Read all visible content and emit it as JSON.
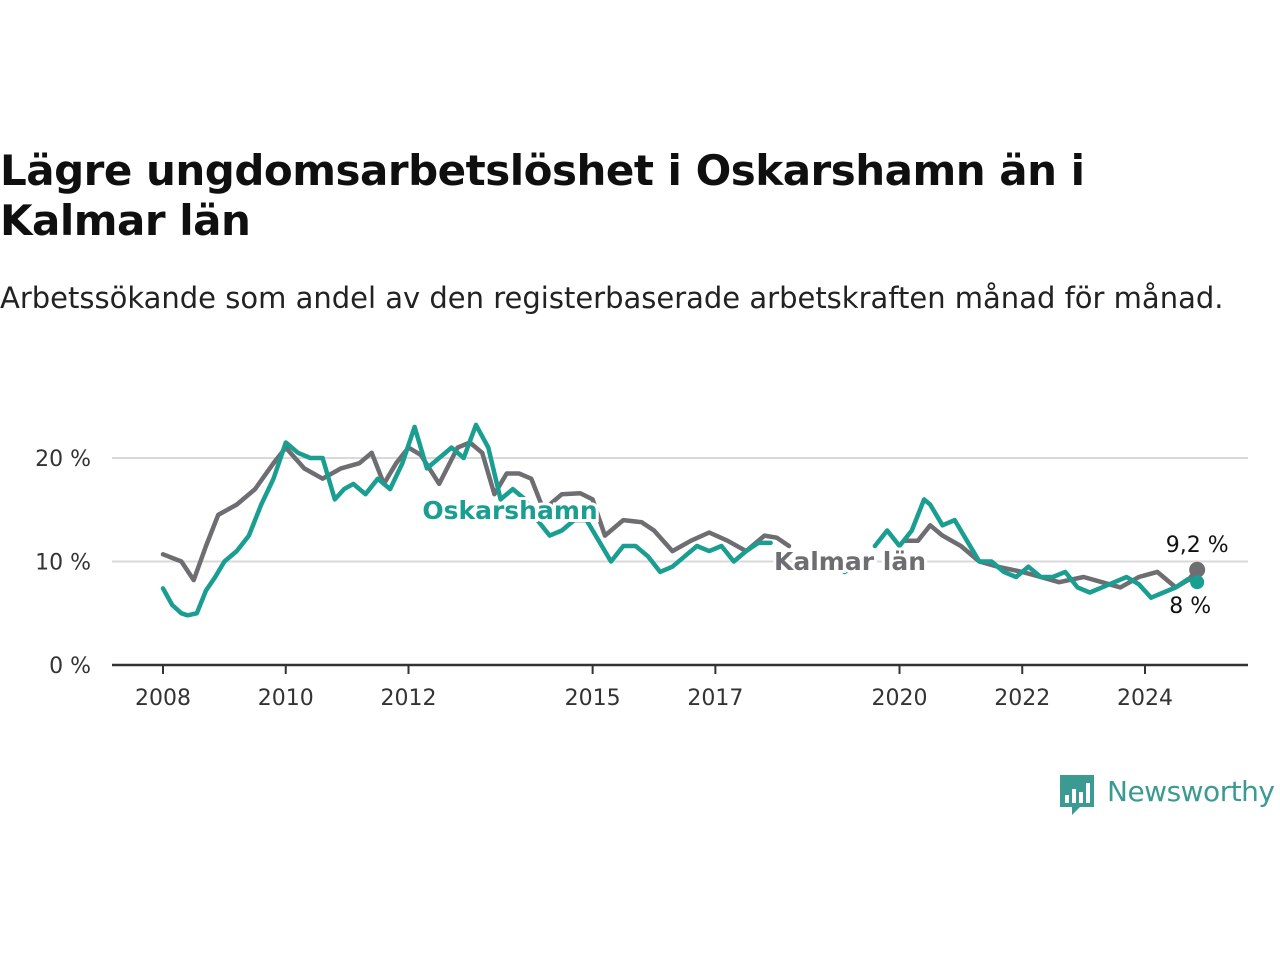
{
  "title": "Lägre ungdomsarbetslöshet i Oskarshamn än i Kalmar län",
  "subtitle": "Arbetssökande som andel av den registerbaserade arbetskraften månad för månad.",
  "brand": {
    "name": "Newsworthy",
    "color": "#3b9a92"
  },
  "chart_data": {
    "type": "line",
    "x_unit": "year",
    "y_unit": "%",
    "ylim": [
      0,
      25
    ],
    "yticks": [
      {
        "value": 0,
        "label": "0 %"
      },
      {
        "value": 10,
        "label": "10 %"
      },
      {
        "value": 20,
        "label": "20 %"
      }
    ],
    "xticks": [
      {
        "value": 2008,
        "label": "2008"
      },
      {
        "value": 2010,
        "label": "2010"
      },
      {
        "value": 2012,
        "label": "2012"
      },
      {
        "value": 2015,
        "label": "2015"
      },
      {
        "value": 2017,
        "label": "2017"
      },
      {
        "value": 2020,
        "label": "2020"
      },
      {
        "value": 2022,
        "label": "2022"
      },
      {
        "value": 2024,
        "label": "2024"
      }
    ],
    "grid": true,
    "series": [
      {
        "name": "Kalmar län",
        "color": "#6e6d72",
        "end_label": "9,2 %",
        "segments": [
          {
            "x": [
              2008.0,
              2008.3,
              2008.5,
              2008.7,
              2008.9,
              2009.2,
              2009.5,
              2009.8,
              2010.0,
              2010.3,
              2010.6,
              2010.9,
              2011.2,
              2011.4,
              2011.6,
              2011.8,
              2012.0,
              2012.2,
              2012.5,
              2012.8,
              2013.0,
              2013.2,
              2013.4,
              2013.6,
              2013.8,
              2014.0,
              2014.2,
              2014.5,
              2014.8,
              2015.0,
              2015.2,
              2015.5,
              2015.8,
              2016.0,
              2016.3,
              2016.6,
              2016.9,
              2017.2,
              2017.5,
              2017.8,
              2018.0,
              2018.2
            ],
            "y": [
              10.7,
              10.0,
              8.2,
              11.5,
              14.5,
              15.5,
              17.0,
              19.5,
              21.0,
              19.0,
              18.0,
              19.0,
              19.5,
              20.5,
              17.5,
              19.5,
              21.0,
              20.3,
              17.5,
              21.0,
              21.5,
              20.5,
              16.5,
              18.5,
              18.5,
              18.0,
              15.0,
              16.5,
              16.6,
              16.0,
              12.5,
              14.0,
              13.8,
              13.0,
              11.0,
              12.0,
              12.8,
              12.0,
              11.0,
              12.5,
              12.3,
              11.5
            ]
          },
          {
            "x": [
              2020.1,
              2020.3,
              2020.5,
              2020.7,
              2021.0,
              2021.3,
              2021.6,
              2022.0,
              2022.3,
              2022.6,
              2023.0,
              2023.3,
              2023.6,
              2023.9,
              2024.2,
              2024.5,
              2024.7,
              2024.85
            ],
            "y": [
              12.0,
              12.0,
              13.5,
              12.5,
              11.5,
              10.0,
              9.5,
              9.0,
              8.5,
              8.0,
              8.5,
              8.0,
              7.5,
              8.5,
              9.0,
              7.5,
              8.2,
              9.2
            ]
          }
        ]
      },
      {
        "name": "Oskarshamn",
        "color": "#1a9e91",
        "end_label": "8 %",
        "segments": [
          {
            "x": [
              2008.0,
              2008.15,
              2008.3,
              2008.4,
              2008.55,
              2008.7,
              2008.85,
              2009.0,
              2009.2,
              2009.4,
              2009.6,
              2009.8,
              2010.0,
              2010.2,
              2010.4,
              2010.6,
              2010.8,
              2010.95,
              2011.1,
              2011.3,
              2011.5,
              2011.7,
              2011.9,
              2012.1,
              2012.3,
              2012.5,
              2012.7,
              2012.9,
              2013.1,
              2013.3,
              2013.5,
              2013.7,
              2013.9,
              2014.1,
              2014.3,
              2014.5,
              2014.7,
              2014.9,
              2015.1,
              2015.3,
              2015.5,
              2015.7,
              2015.9,
              2016.1,
              2016.3,
              2016.5,
              2016.7,
              2016.9,
              2017.1,
              2017.3,
              2017.5,
              2017.7,
              2017.9
            ],
            "y": [
              7.4,
              5.8,
              5.0,
              4.8,
              5.0,
              7.2,
              8.5,
              10.0,
              11.0,
              12.5,
              15.5,
              18.0,
              21.5,
              20.5,
              20.0,
              20.0,
              16.0,
              17.0,
              17.5,
              16.5,
              18.0,
              17.0,
              19.5,
              23.0,
              19.0,
              20.0,
              21.0,
              20.0,
              23.2,
              21.0,
              16.0,
              17.0,
              16.0,
              14.0,
              12.5,
              13.0,
              14.0,
              14.0,
              12.0,
              10.0,
              11.5,
              11.5,
              10.5,
              9.0,
              9.5,
              10.5,
              11.5,
              11.0,
              11.5,
              10.0,
              11.0,
              11.8,
              11.8
            ]
          },
          {
            "x": [
              2019.1,
              2019.3
            ],
            "y": [
              9.0,
              9.5
            ]
          },
          {
            "x": [
              2019.6,
              2019.8,
              2020.0,
              2020.2,
              2020.4,
              2020.5,
              2020.7,
              2020.9,
              2021.1,
              2021.3,
              2021.5,
              2021.7,
              2021.9,
              2022.1,
              2022.3,
              2022.5,
              2022.7,
              2022.9,
              2023.1,
              2023.3,
              2023.5,
              2023.7,
              2023.9,
              2024.1,
              2024.3,
              2024.5,
              2024.7,
              2024.85
            ],
            "y": [
              11.5,
              13.0,
              11.5,
              13.0,
              16.0,
              15.5,
              13.5,
              14.0,
              12.0,
              10.0,
              10.0,
              9.0,
              8.5,
              9.5,
              8.5,
              8.5,
              9.0,
              7.5,
              7.0,
              7.5,
              8.0,
              8.5,
              7.8,
              6.5,
              7.0,
              7.5,
              8.3,
              8.0
            ]
          }
        ]
      }
    ]
  }
}
